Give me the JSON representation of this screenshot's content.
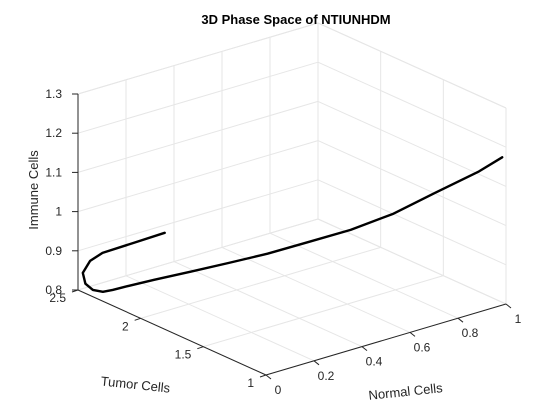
{
  "chart_data": {
    "type": "line",
    "projection": "3d",
    "title": "3D Phase Space of NTIUNHDM",
    "xlabel": "Normal Cells",
    "ylabel": "Tumor Cells",
    "zlabel": "Immune Cells",
    "xlim": [
      0,
      1
    ],
    "ylim": [
      1,
      2.5
    ],
    "zlim": [
      0.8,
      1.3
    ],
    "x_ticks": [
      "0",
      "0.2",
      "0.4",
      "0.6",
      "0.8",
      "1"
    ],
    "y_ticks": [
      "1",
      "1.5",
      "2",
      "2.5"
    ],
    "z_ticks": [
      "0.8",
      "0.9",
      "1",
      "1.1",
      "1.2",
      "1.3"
    ],
    "grid": true,
    "series": [
      {
        "color": "#000000",
        "points": [
          {
            "x": 0.1,
            "y": 2.0,
            "z": 1.0
          },
          {
            "x": 0.08,
            "y": 2.2,
            "z": 0.95
          },
          {
            "x": 0.05,
            "y": 2.4,
            "z": 0.9
          },
          {
            "x": 0.04,
            "y": 2.48,
            "z": 0.87
          },
          {
            "x": 0.02,
            "y": 2.5,
            "z": 0.84
          },
          {
            "x": 0.01,
            "y": 2.46,
            "z": 0.82
          },
          {
            "x": 0.01,
            "y": 2.4,
            "z": 0.813
          },
          {
            "x": 0.02,
            "y": 2.34,
            "z": 0.815
          },
          {
            "x": 0.04,
            "y": 2.3,
            "z": 0.822
          },
          {
            "x": 0.08,
            "y": 2.25,
            "z": 0.832
          },
          {
            "x": 0.15,
            "y": 2.18,
            "z": 0.845
          },
          {
            "x": 0.25,
            "y": 2.08,
            "z": 0.862
          },
          {
            "x": 0.35,
            "y": 1.97,
            "z": 0.882
          },
          {
            "x": 0.45,
            "y": 1.85,
            "z": 0.905
          },
          {
            "x": 0.55,
            "y": 1.72,
            "z": 0.935
          },
          {
            "x": 0.65,
            "y": 1.57,
            "z": 0.97
          },
          {
            "x": 0.75,
            "y": 1.42,
            "z": 1.015
          },
          {
            "x": 0.85,
            "y": 1.28,
            "z": 1.07
          },
          {
            "x": 0.95,
            "y": 1.12,
            "z": 1.13
          },
          {
            "x": 1.0,
            "y": 1.03,
            "z": 1.17
          }
        ]
      }
    ]
  }
}
